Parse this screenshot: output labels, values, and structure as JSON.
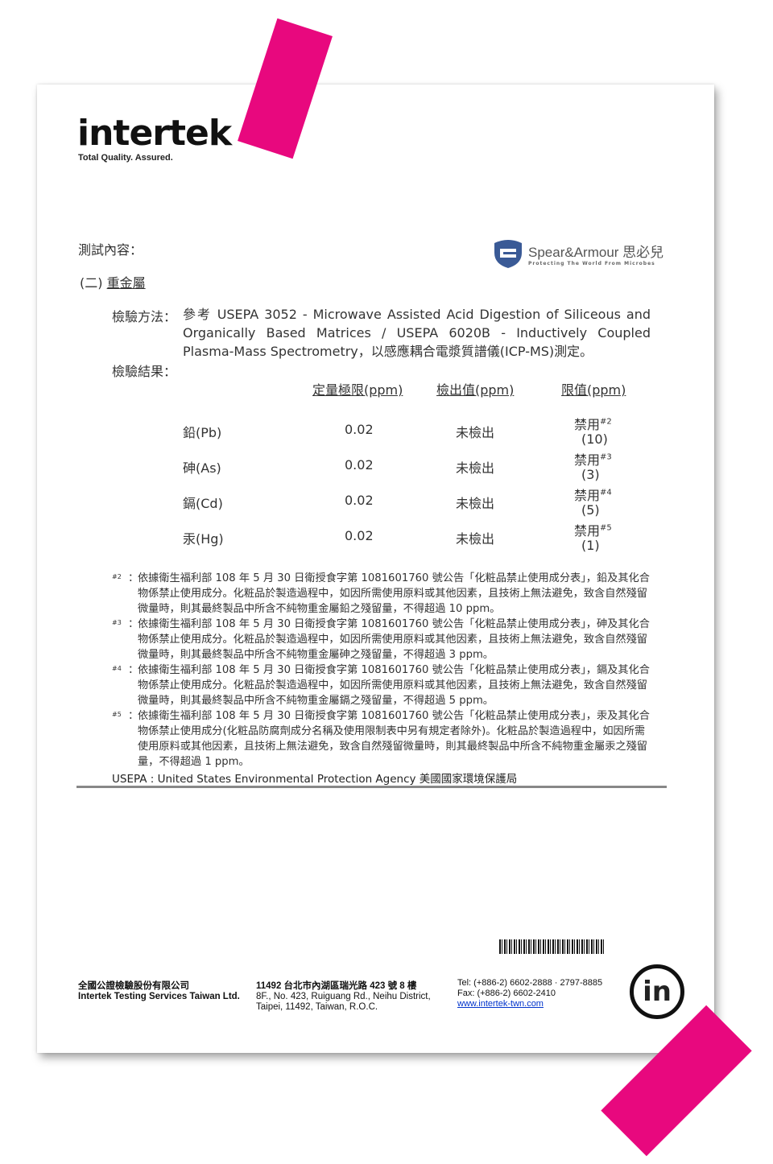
{
  "header": {
    "logo": "intertek",
    "tagline": "Total Quality. Assured.",
    "partner_logo": "Spear&Armour 思必兒",
    "partner_tagline": "Protecting The World From Microbes"
  },
  "section": {
    "title": "測試內容：",
    "subtitle_prefix": "(二)",
    "subtitle": "重金屬"
  },
  "method": {
    "label": "檢驗方法：",
    "text": "參考 USEPA 3052 - Microwave Assisted Acid Digestion of Siliceous and Organically Based Matrices / USEPA 6020B - Inductively Coupled Plasma-Mass Spectrometry，以感應耦合電漿質譜儀(ICP-MS)測定。"
  },
  "results": {
    "label": "檢驗結果：",
    "headers": [
      "定量極限(ppm)",
      "檢出值(ppm)",
      "限值(ppm)"
    ],
    "rows": [
      {
        "item": "鉛(Pb)",
        "loq": "0.02",
        "detected": "未檢出",
        "limit": "禁用",
        "note": "#2",
        "limit_value": "(10)"
      },
      {
        "item": "砷(As)",
        "loq": "0.02",
        "detected": "未檢出",
        "limit": "禁用",
        "note": "#3",
        "limit_value": "(3)"
      },
      {
        "item": "鎘(Cd)",
        "loq": "0.02",
        "detected": "未檢出",
        "limit": "禁用",
        "note": "#4",
        "limit_value": "(5)"
      },
      {
        "item": "汞(Hg)",
        "loq": "0.02",
        "detected": "未檢出",
        "limit": "禁用",
        "note": "#5",
        "limit_value": "(1)"
      }
    ]
  },
  "footnotes": [
    {
      "mark": "#2",
      "text": "依據衛生福利部 108 年 5 月 30 日衛授食字第 1081601760 號公告「化粧品禁止使用成分表」，鉛及其化合物係禁止使用成分。化粧品於製造過程中，如因所需使用原料或其他因素，且技術上無法避免，致含自然殘留微量時，則其最終製品中所含不純物重金屬鉛之殘留量，不得超過 10 ppm。"
    },
    {
      "mark": "#3",
      "text": "依據衛生福利部 108 年 5 月 30 日衛授食字第 1081601760 號公告「化粧品禁止使用成分表」，砷及其化合物係禁止使用成分。化粧品於製造過程中，如因所需使用原料或其他因素，且技術上無法避免，致含自然殘留微量時，則其最終製品中所含不純物重金屬砷之殘留量，不得超過 3 ppm。"
    },
    {
      "mark": "#4",
      "text": "依據衛生福利部 108 年 5 月 30 日衛授食字第 1081601760 號公告「化粧品禁止使用成分表」，鎘及其化合物係禁止使用成分。化粧品於製造過程中，如因所需使用原料或其他因素，且技術上無法避免，致含自然殘留微量時，則其最終製品中所含不純物重金屬鎘之殘留量，不得超過 5 ppm。"
    },
    {
      "mark": "#5",
      "text": "依據衛生福利部 108 年 5 月 30 日衛授食字第 1081601760 號公告「化粧品禁止使用成分表」，汞及其化合物係禁止使用成分(化粧品防腐劑成分名稱及使用限制表中另有規定者除外)。化粧品於製造過程中，如因所需使用原料或其他因素，且技術上無法避免，致含自然殘留微量時，則其最終製品中所含不純物重金屬汞之殘留量，不得超過 1 ppm。"
    }
  ],
  "usepa": "USEPA : United States Environmental Protection Agency 美國國家環境保護局",
  "footer": {
    "company_zh": "全國公證檢驗股份有限公司",
    "company_en": "Intertek Testing Services Taiwan Ltd.",
    "address_zh": "11492 台北市內湖區瑞光路 423 號 8 樓",
    "address_en1": "8F., No. 423, Ruiguang Rd., Neihu District,",
    "address_en2": "Taipei, 11492, Taiwan, R.O.C.",
    "tel": "Tel: (+886-2) 6602-2888 · 2797-8885",
    "fax": "Fax: (+886-2) 6602-2410",
    "web": "www.intertek-twn.com",
    "badge": "in"
  },
  "colors": {
    "tape": "#e8087e",
    "shield": "#3a5a96"
  }
}
